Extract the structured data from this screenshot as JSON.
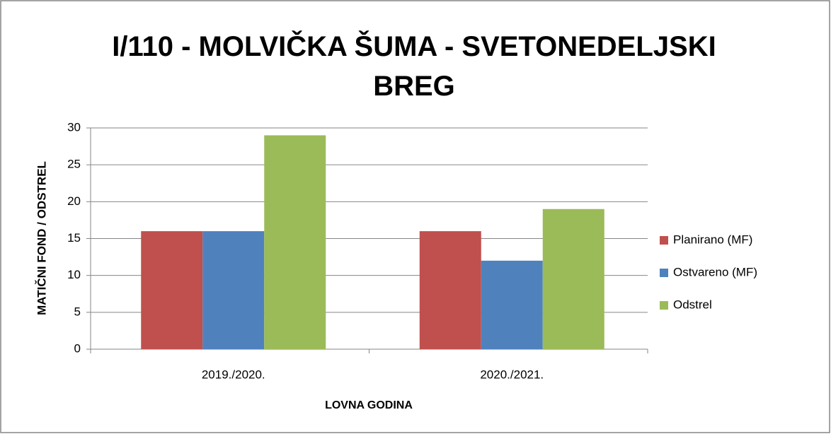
{
  "chart_data": {
    "type": "bar",
    "title": "I/110 - MOLVIČKA ŠUMA - SVETONEDELJSKI BREG",
    "x_label": "LOVNA GODINA",
    "y_label": "MATIČNI FOND / ODSTREL",
    "categories": [
      "2019./2020.",
      "2020./2021."
    ],
    "series": [
      {
        "name": "Planirano (MF)",
        "color": "#c0504d",
        "values": [
          16,
          16
        ]
      },
      {
        "name": "Ostvareno (MF)",
        "color": "#4f81bd",
        "values": [
          16,
          12
        ]
      },
      {
        "name": "Odstrel",
        "color": "#9bbb59",
        "values": [
          29,
          19
        ]
      }
    ],
    "ylim": [
      0,
      30
    ],
    "yticks": [
      0,
      5,
      10,
      15,
      20,
      25,
      30
    ],
    "grid": true,
    "legend": "right"
  }
}
